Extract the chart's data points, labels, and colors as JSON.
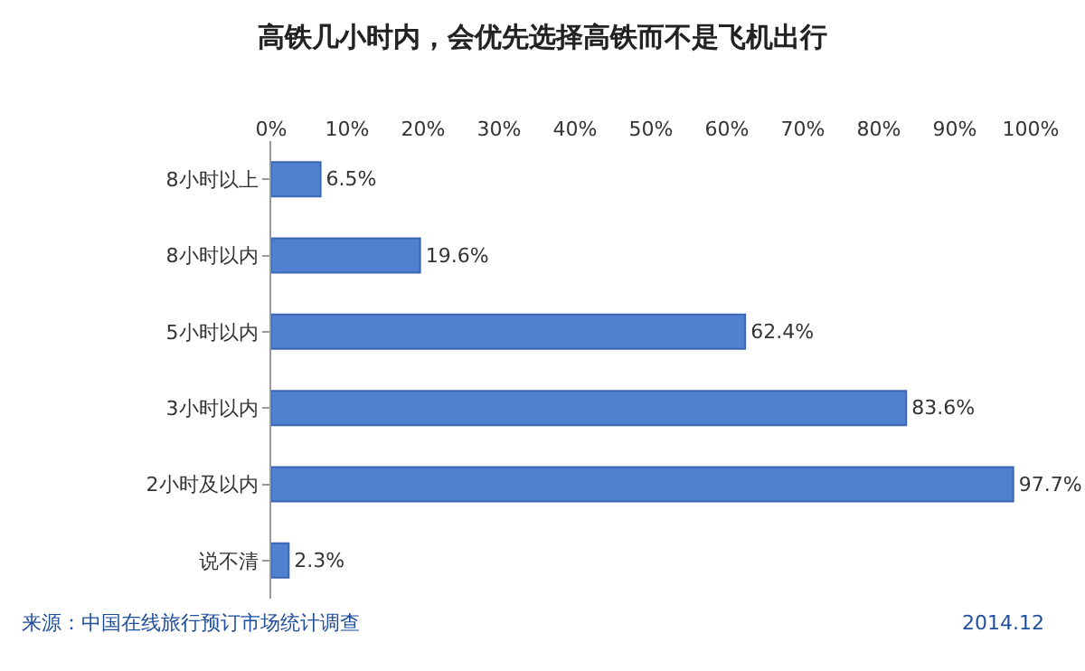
{
  "chart_data": {
    "type": "bar",
    "orientation": "horizontal",
    "title": "高铁几小时内，会优先选择高铁而不是飞机出行",
    "categories": [
      "8小时以上",
      "8小时以内",
      "5小时以内",
      "3小时以内",
      "2小时及以内",
      "说不清"
    ],
    "values": [
      6.5,
      19.6,
      62.4,
      83.6,
      97.7,
      2.3
    ],
    "value_labels": [
      "6.5%",
      "19.6%",
      "62.4%",
      "83.6%",
      "97.7%",
      "2.3%"
    ],
    "color": "#4f81d0",
    "xlim": [
      0,
      100
    ],
    "xticks": [
      {
        "value": 0,
        "label": "0%"
      },
      {
        "value": 10,
        "label": "10%"
      },
      {
        "value": 20,
        "label": "20%"
      },
      {
        "value": 30,
        "label": "30%"
      },
      {
        "value": 40,
        "label": "40%"
      },
      {
        "value": 50,
        "label": "50%"
      },
      {
        "value": 60,
        "label": "60%"
      },
      {
        "value": 70,
        "label": "70%"
      },
      {
        "value": 80,
        "label": "80%"
      },
      {
        "value": 90,
        "label": "90%"
      },
      {
        "value": 100,
        "label": "100%"
      }
    ],
    "grid": false,
    "legend": false,
    "annotations": [
      "来源：中国在线旅行预订市场统计调查",
      "2014.12"
    ]
  }
}
